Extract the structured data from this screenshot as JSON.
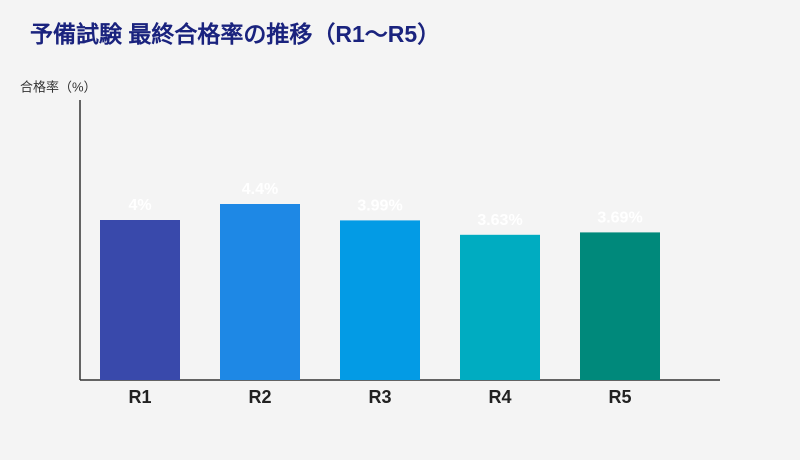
{
  "chart_data": {
    "type": "bar",
    "title": "予備試験 最終合格率の推移（R1〜R5）",
    "y_label": "合格率（%）",
    "categories": [
      "R1",
      "R2",
      "R3",
      "R4",
      "R5"
    ],
    "values": [
      4,
      4.4,
      3.99,
      3.63,
      3.69
    ],
    "value_labels": [
      "4%",
      "4.4%",
      "3.99%",
      "3.63%",
      "3.69%"
    ],
    "colors": [
      "#3949ab",
      "#1e88e5",
      "#039be5",
      "#00acc1",
      "#00897b"
    ],
    "ylim": [
      0,
      7
    ]
  }
}
